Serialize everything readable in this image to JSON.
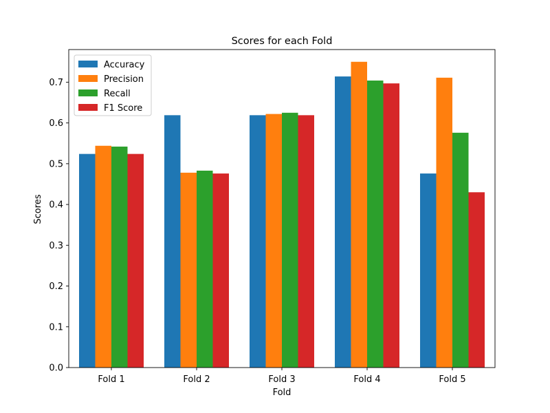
{
  "chart_data": {
    "type": "bar",
    "title": "Scores for each Fold",
    "xlabel": "Fold",
    "ylabel": "Scores",
    "categories": [
      "Fold 1",
      "Fold 2",
      "Fold 3",
      "Fold 4",
      "Fold 5"
    ],
    "ylim": [
      0,
      0.78
    ],
    "yticks": [
      "0.0",
      "0.1",
      "0.2",
      "0.3",
      "0.4",
      "0.5",
      "0.6",
      "0.7"
    ],
    "grid": false,
    "legend_position": "top-left",
    "series": [
      {
        "name": "Accuracy",
        "color": "#1f77b4",
        "values": [
          0.524,
          0.619,
          0.619,
          0.714,
          0.476
        ]
      },
      {
        "name": "Precision",
        "color": "#ff7f0e",
        "values": [
          0.544,
          0.478,
          0.622,
          0.75,
          0.711
        ]
      },
      {
        "name": "Recall",
        "color": "#2ca02c",
        "values": [
          0.542,
          0.483,
          0.625,
          0.704,
          0.576
        ]
      },
      {
        "name": "F1 Score",
        "color": "#d62728",
        "values": [
          0.524,
          0.476,
          0.619,
          0.697,
          0.43
        ]
      }
    ]
  }
}
